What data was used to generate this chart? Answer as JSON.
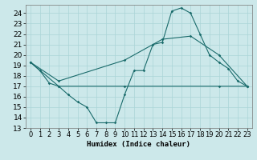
{
  "title": "",
  "xlabel": "Humidex (Indice chaleur)",
  "bg_color": "#cce8ea",
  "grid_color": "#aad4d7",
  "line_color": "#1a6b6b",
  "xlim": [
    -0.5,
    23.5
  ],
  "ylim": [
    13,
    24.8
  ],
  "yticks": [
    13,
    14,
    15,
    16,
    17,
    18,
    19,
    20,
    21,
    22,
    23,
    24
  ],
  "xticks": [
    0,
    1,
    2,
    3,
    4,
    5,
    6,
    7,
    8,
    9,
    10,
    11,
    12,
    13,
    14,
    15,
    16,
    17,
    18,
    19,
    20,
    21,
    22,
    23
  ],
  "line1_x": [
    0,
    1,
    2,
    3,
    4,
    5,
    6,
    7,
    8,
    9,
    10,
    11,
    12,
    13,
    14,
    15,
    16,
    17,
    18,
    19,
    20,
    21,
    22,
    23
  ],
  "line1_y": [
    19.3,
    18.5,
    17.3,
    17.0,
    16.2,
    15.5,
    15.0,
    13.5,
    13.5,
    13.5,
    16.2,
    18.5,
    18.5,
    21.0,
    21.2,
    24.2,
    24.5,
    24.0,
    22.0,
    20.0,
    19.3,
    18.7,
    17.5,
    17.0
  ],
  "line2_x": [
    0,
    3,
    10,
    14,
    17,
    20,
    23
  ],
  "line2_y": [
    19.3,
    17.5,
    19.5,
    21.5,
    21.8,
    20.0,
    17.0
  ],
  "line3_x": [
    0,
    3,
    10,
    20,
    23
  ],
  "line3_y": [
    19.3,
    17.0,
    17.0,
    17.0,
    17.0
  ],
  "font_size": 6.5
}
